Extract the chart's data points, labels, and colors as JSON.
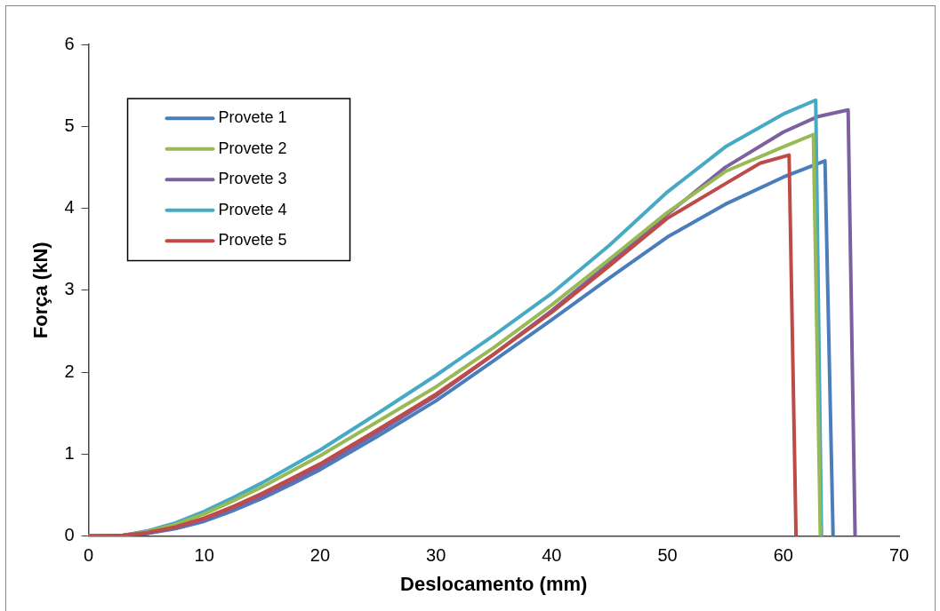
{
  "chart_data": {
    "type": "line",
    "xlabel": "Deslocamento (mm)",
    "ylabel": "Força (kN)",
    "xlim": [
      0,
      70
    ],
    "xticks": [
      0,
      10,
      20,
      30,
      40,
      50,
      60,
      70
    ],
    "ylim": [
      0,
      6
    ],
    "yticks": [
      0,
      1,
      2,
      3,
      4,
      5,
      6
    ],
    "grid": false,
    "legend": "top left",
    "marker": "none",
    "line_style": "solid",
    "series": [
      {
        "name": "Provete 1",
        "color": "#4a7ebb",
        "x": [
          0,
          3,
          5,
          7.5,
          10,
          12.5,
          15,
          17.5,
          20,
          25,
          30,
          35,
          40,
          45,
          50,
          55,
          60,
          63.6,
          64.3
        ],
        "values": [
          0,
          0.01,
          0.03,
          0.09,
          0.18,
          0.31,
          0.46,
          0.63,
          0.81,
          1.22,
          1.65,
          2.14,
          2.64,
          3.15,
          3.65,
          4.05,
          4.38,
          4.58,
          0
        ]
      },
      {
        "name": "Provete 2",
        "color": "#98b954",
        "x": [
          0,
          3,
          5,
          7.5,
          10,
          12.5,
          15,
          17.5,
          20,
          25,
          30,
          35,
          40,
          45,
          50,
          55,
          60,
          62.6,
          63.2
        ],
        "values": [
          0,
          0.01,
          0.05,
          0.14,
          0.27,
          0.43,
          0.6,
          0.79,
          0.98,
          1.4,
          1.82,
          2.3,
          2.82,
          3.38,
          3.95,
          4.45,
          4.75,
          4.9,
          0
        ]
      },
      {
        "name": "Provete 3",
        "color": "#7d60a0",
        "x": [
          0,
          3,
          5,
          7.5,
          10,
          12.5,
          15,
          17.5,
          20,
          25,
          30,
          35,
          40,
          45,
          50,
          55,
          60,
          63,
          65.6,
          66.2
        ],
        "values": [
          0,
          0.01,
          0.03,
          0.1,
          0.2,
          0.34,
          0.49,
          0.66,
          0.85,
          1.27,
          1.71,
          2.22,
          2.75,
          3.33,
          3.93,
          4.5,
          4.93,
          5.12,
          5.2,
          0
        ]
      },
      {
        "name": "Provete 4",
        "color": "#46aac5",
        "x": [
          0,
          3,
          5,
          7.5,
          10,
          12.5,
          15,
          17.5,
          20,
          25,
          30,
          35,
          40,
          45,
          50,
          55,
          60,
          62.8,
          63.3
        ],
        "values": [
          0,
          0.01,
          0.06,
          0.16,
          0.3,
          0.47,
          0.65,
          0.85,
          1.05,
          1.5,
          1.96,
          2.45,
          2.96,
          3.55,
          4.2,
          4.75,
          5.15,
          5.32,
          0
        ]
      },
      {
        "name": "Provete 5",
        "color": "#be4b48",
        "x": [
          0,
          3,
          5,
          7.5,
          10,
          12.5,
          15,
          17.5,
          20,
          25,
          30,
          35,
          40,
          45,
          50,
          55,
          58,
          60.5,
          61.1
        ],
        "values": [
          0,
          0.01,
          0.04,
          0.11,
          0.22,
          0.36,
          0.52,
          0.7,
          0.88,
          1.3,
          1.73,
          2.22,
          2.73,
          3.3,
          3.88,
          4.3,
          4.55,
          4.65,
          0
        ]
      }
    ]
  }
}
